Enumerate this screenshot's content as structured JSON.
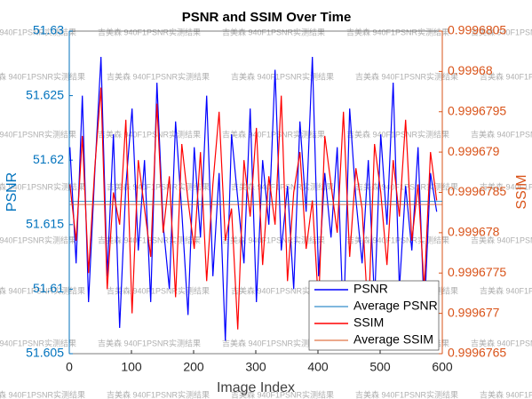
{
  "chart_data": {
    "type": "line",
    "title": "PSNR and SSIM Over Time",
    "xlabel": "Image Index",
    "ylabel": "PSNR",
    "y2label": "SSIM",
    "watermark": "吉美森 940F1PSNR实测结果",
    "xlim": [
      0,
      600
    ],
    "xticks": [
      0,
      100,
      200,
      300,
      400,
      500,
      600
    ],
    "ylim": [
      51.605,
      51.63
    ],
    "yticks": [
      51.605,
      51.61,
      51.615,
      51.62,
      51.625,
      51.63
    ],
    "y2lim": [
      0.9996765,
      0.9996805
    ],
    "y2ticks": [
      0.9996765,
      0.999677,
      0.9996775,
      0.999678,
      0.9996785,
      0.999679,
      0.9996795,
      0.99968,
      0.9996805
    ],
    "left_axis_color": "#0072bd",
    "right_axis_color": "#d95319",
    "legend": "lower right",
    "series": [
      {
        "name": "PSNR",
        "color": "#0000ff",
        "width": 1.2,
        "x": [
          1,
          11,
          21,
          31,
          41,
          51,
          61,
          71,
          81,
          91,
          101,
          111,
          121,
          131,
          141,
          151,
          161,
          171,
          181,
          191,
          201,
          211,
          221,
          231,
          241,
          251,
          261,
          271,
          281,
          291,
          301,
          311,
          321,
          331,
          341,
          351,
          361,
          371,
          381,
          391,
          401,
          411,
          421,
          431,
          441,
          451,
          461,
          471,
          481,
          491,
          501,
          511,
          521,
          531,
          541,
          551,
          561,
          571,
          581,
          591
        ],
        "values": [
          51.621,
          51.612,
          51.625,
          51.609,
          51.619,
          51.628,
          51.611,
          51.622,
          51.607,
          51.618,
          51.624,
          51.613,
          51.62,
          51.609,
          51.626,
          51.615,
          51.61,
          51.623,
          51.616,
          51.608,
          51.621,
          51.614,
          51.625,
          51.611,
          51.619,
          51.606,
          51.622,
          51.617,
          51.612,
          51.624,
          51.609,
          51.62,
          51.615,
          51.627,
          51.613,
          51.618,
          51.61,
          51.623,
          51.616,
          51.628,
          51.611,
          51.619,
          51.614,
          51.621,
          51.607,
          51.624,
          51.617,
          51.612,
          51.62,
          51.609,
          51.622,
          51.615,
          51.626,
          51.61,
          51.618,
          51.613,
          51.621,
          51.608,
          51.619,
          51.616
        ]
      },
      {
        "name": "Average PSNR",
        "color": "#0072bd",
        "width": 0.8,
        "x": [
          1,
          600
        ],
        "values": [
          51.6168,
          51.6168
        ]
      },
      {
        "name": "SSIM",
        "color": "#ff0000",
        "width": 1.2,
        "axis": "y2",
        "x": [
          1,
          11,
          21,
          31,
          41,
          51,
          61,
          71,
          81,
          91,
          101,
          111,
          121,
          131,
          141,
          151,
          161,
          171,
          181,
          191,
          201,
          211,
          221,
          231,
          241,
          251,
          261,
          271,
          281,
          291,
          301,
          311,
          321,
          331,
          341,
          351,
          361,
          371,
          381,
          391,
          401,
          411,
          421,
          431,
          441,
          451,
          461,
          471,
          481,
          491,
          501,
          511,
          521,
          531,
          541,
          551,
          561,
          571,
          581,
          591
        ],
        "values": [
          0.9996786,
          0.9996779,
          0.9996792,
          0.9996775,
          0.9996788,
          0.9996798,
          0.9996773,
          0.9996785,
          0.9996781,
          0.9996794,
          0.999677,
          0.9996789,
          0.9996783,
          0.9996777,
          0.9996796,
          0.999678,
          0.9996787,
          0.9996772,
          0.9996791,
          0.9996784,
          0.9996778,
          0.999679,
          0.9996774,
          0.9996786,
          0.9996795,
          0.9996779,
          0.9996783,
          0.9996768,
          0.9996789,
          0.9996782,
          0.9996793,
          0.9996776,
          0.9996787,
          0.9996781,
          0.9996797,
          0.9996774,
          0.9996785,
          0.999679,
          0.9996778,
          0.9996784,
          0.9996771,
          0.9996792,
          0.9996786,
          0.999678,
          0.9996795,
          0.9996777,
          0.9996788,
          0.9996783,
          0.9996769,
          0.9996791,
          0.9996785,
          0.9996776,
          0.9996789,
          0.9996782,
          0.9996794,
          0.9996779,
          0.9996786,
          0.9996773,
          0.999679,
          0.9996784
        ]
      },
      {
        "name": "Average SSIM",
        "color": "#d95319",
        "width": 0.8,
        "axis": "y2",
        "x": [
          1,
          600
        ],
        "values": [
          0.99967835,
          0.99967835
        ]
      }
    ]
  }
}
